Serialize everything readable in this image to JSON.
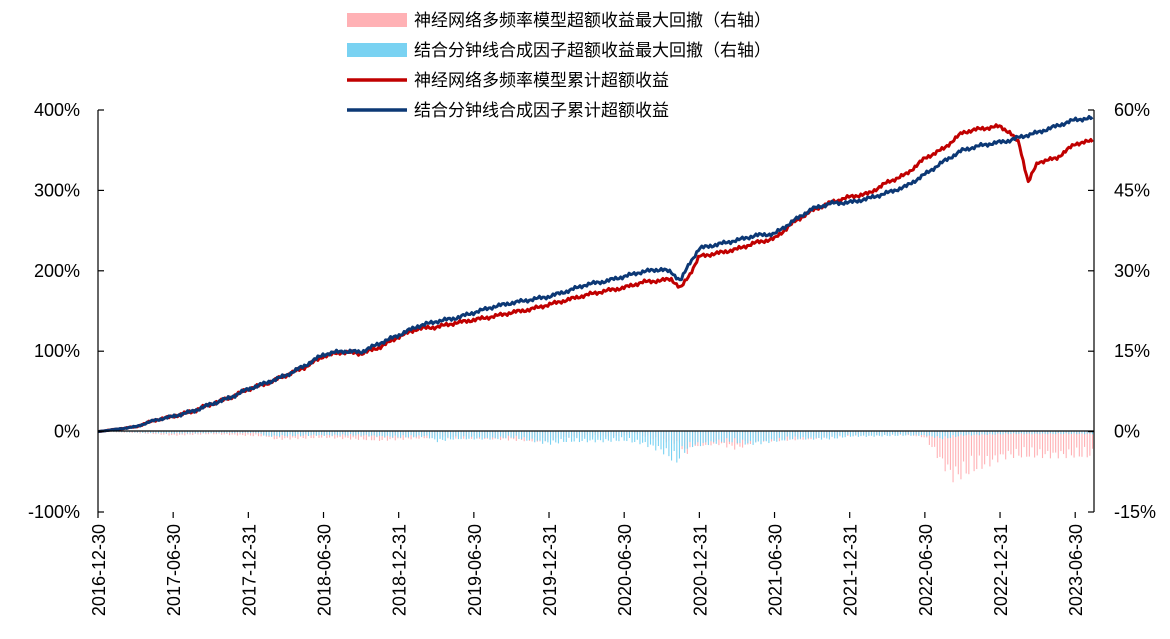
{
  "chart_data": {
    "type": "line",
    "x_tick_labels": [
      "2016-12-30",
      "2017-06-30",
      "2017-12-31",
      "2018-06-30",
      "2018-12-31",
      "2019-06-30",
      "2019-12-31",
      "2020-06-30",
      "2020-12-31",
      "2021-06-30",
      "2021-12-31",
      "2022-06-30",
      "2022-12-31",
      "2023-06-30"
    ],
    "y_left_ticks": [
      "-100%",
      "0%",
      "100%",
      "200%",
      "300%",
      "400%"
    ],
    "y_right_ticks": [
      "-15%",
      "0%",
      "15%",
      "30%",
      "45%",
      "60%"
    ],
    "ylim_left": [
      -100,
      400
    ],
    "ylim_right": [
      -15,
      60
    ],
    "legend_position": "top-center",
    "series": [
      {
        "name": "神经网络多频率模型超额收益最大回撤（右轴）",
        "kind": "bar",
        "axis": "right",
        "color": "#FFB1B5",
        "points": [
          [
            0,
            0
          ],
          [
            4,
            -0.3
          ],
          [
            6,
            -0.5
          ],
          [
            8,
            -0.8
          ],
          [
            12,
            -0.5
          ],
          [
            18,
            -1
          ],
          [
            19,
            -1.6
          ],
          [
            24,
            -1.2
          ],
          [
            30,
            -1.8
          ],
          [
            36,
            -1.2
          ],
          [
            42,
            -1.5
          ],
          [
            47,
            -2
          ],
          [
            50,
            -1.2
          ],
          [
            56,
            -1
          ],
          [
            57,
            -0.3
          ],
          [
            59,
            -1.5
          ],
          [
            62,
            -2.5
          ],
          [
            62.6,
            -5.5
          ],
          [
            63,
            -3
          ],
          [
            66,
            -2.5
          ],
          [
            68,
            -3.5
          ],
          [
            70,
            -2
          ],
          [
            76,
            -1.5
          ],
          [
            78,
            -1
          ],
          [
            80,
            -0.8
          ],
          [
            82,
            -0.8
          ],
          [
            84,
            -0.6
          ],
          [
            86,
            -0.6
          ],
          [
            88,
            -1.2
          ],
          [
            89,
            -4
          ],
          [
            90,
            -7
          ],
          [
            91,
            -9.5
          ],
          [
            92,
            -9
          ],
          [
            93,
            -8
          ],
          [
            94,
            -7.2
          ],
          [
            95,
            -6.5
          ],
          [
            96,
            -5.5
          ],
          [
            97,
            -5
          ]
        ]
      },
      {
        "name": "结合分钟线合成因子超额收益最大回撤（右轴）",
        "kind": "bar",
        "axis": "right",
        "color": "#79D2F2",
        "points": [
          [
            0,
            0
          ],
          [
            4,
            -0.2
          ],
          [
            8,
            -0.4
          ],
          [
            12,
            -0.3
          ],
          [
            17,
            -0.3
          ],
          [
            18,
            -1
          ],
          [
            23,
            -0.8
          ],
          [
            28,
            -0.8
          ],
          [
            32,
            -1.2
          ],
          [
            35,
            -1
          ],
          [
            36,
            -2
          ],
          [
            38,
            -1.5
          ],
          [
            42,
            -1.5
          ],
          [
            44,
            -1.2
          ],
          [
            48,
            -2.5
          ],
          [
            50,
            -2
          ],
          [
            54,
            -2
          ],
          [
            56,
            -1.8
          ],
          [
            58,
            -2.5
          ],
          [
            60,
            -4
          ],
          [
            61,
            -5.5
          ],
          [
            61.5,
            -6.5
          ],
          [
            62,
            -5
          ],
          [
            63,
            -3
          ],
          [
            65,
            -2.5
          ],
          [
            67,
            -2
          ],
          [
            69,
            -2.5
          ],
          [
            70,
            -2.5
          ],
          [
            72,
            -2
          ],
          [
            74,
            -1.5
          ],
          [
            78,
            -1.5
          ],
          [
            80,
            -1
          ],
          [
            82,
            -1
          ],
          [
            86,
            -0.8
          ],
          [
            88,
            -0.8
          ],
          [
            90,
            -1.5
          ],
          [
            92,
            -0.8
          ],
          [
            97,
            -0.5
          ]
        ]
      },
      {
        "name": "神经网络多频率模型累计超额收益",
        "kind": "line",
        "axis": "left",
        "color": "#C00000",
        "points": [
          [
            0,
            0
          ],
          [
            2,
            3
          ],
          [
            4,
            6
          ],
          [
            6,
            14
          ],
          [
            8,
            19
          ],
          [
            10,
            25
          ],
          [
            12,
            34
          ],
          [
            14,
            42
          ],
          [
            16,
            53
          ],
          [
            18,
            60
          ],
          [
            20,
            70
          ],
          [
            22,
            80
          ],
          [
            24,
            94
          ],
          [
            26,
            99
          ],
          [
            28,
            97
          ],
          [
            30,
            105
          ],
          [
            32,
            118
          ],
          [
            34,
            128
          ],
          [
            36,
            130
          ],
          [
            38,
            135
          ],
          [
            40,
            139
          ],
          [
            42,
            143
          ],
          [
            44,
            148
          ],
          [
            46,
            152
          ],
          [
            48,
            158
          ],
          [
            50,
            164
          ],
          [
            52,
            170
          ],
          [
            54,
            175
          ],
          [
            56,
            179
          ],
          [
            58,
            186
          ],
          [
            60,
            188
          ],
          [
            61,
            190
          ],
          [
            62,
            178
          ],
          [
            63,
            196
          ],
          [
            64,
            218
          ],
          [
            66,
            222
          ],
          [
            68,
            227
          ],
          [
            70,
            235
          ],
          [
            72,
            240
          ],
          [
            74,
            260
          ],
          [
            76,
            275
          ],
          [
            78,
            285
          ],
          [
            80,
            292
          ],
          [
            82,
            296
          ],
          [
            84,
            310
          ],
          [
            86,
            320
          ],
          [
            88,
            340
          ],
          [
            90,
            352
          ],
          [
            92,
            372
          ],
          [
            94,
            377
          ],
          [
            95,
            378
          ],
          [
            96,
            380
          ],
          [
            97,
            372
          ],
          [
            98,
            360
          ],
          [
            99,
            310
          ],
          [
            100,
            335
          ],
          [
            102,
            340
          ],
          [
            104,
            358
          ],
          [
            106,
            362
          ]
        ]
      },
      {
        "name": "结合分钟线合成因子累计超额收益",
        "kind": "line",
        "axis": "left",
        "color": "#0C3875",
        "points": [
          [
            0,
            0
          ],
          [
            2,
            3
          ],
          [
            4,
            6
          ],
          [
            6,
            14
          ],
          [
            8,
            19
          ],
          [
            10,
            25
          ],
          [
            12,
            34
          ],
          [
            14,
            42
          ],
          [
            16,
            53
          ],
          [
            18,
            61
          ],
          [
            20,
            70
          ],
          [
            22,
            82
          ],
          [
            24,
            96
          ],
          [
            26,
            100
          ],
          [
            28,
            99
          ],
          [
            30,
            110
          ],
          [
            32,
            120
          ],
          [
            34,
            131
          ],
          [
            36,
            137
          ],
          [
            38,
            141
          ],
          [
            40,
            148
          ],
          [
            42,
            155
          ],
          [
            44,
            160
          ],
          [
            46,
            164
          ],
          [
            48,
            168
          ],
          [
            50,
            175
          ],
          [
            52,
            183
          ],
          [
            54,
            187
          ],
          [
            56,
            193
          ],
          [
            58,
            199
          ],
          [
            60,
            202
          ],
          [
            61,
            198
          ],
          [
            62,
            188
          ],
          [
            63,
            210
          ],
          [
            64,
            228
          ],
          [
            66,
            233
          ],
          [
            68,
            238
          ],
          [
            70,
            244
          ],
          [
            72,
            246
          ],
          [
            74,
            262
          ],
          [
            76,
            277
          ],
          [
            78,
            284
          ],
          [
            80,
            285
          ],
          [
            82,
            290
          ],
          [
            84,
            297
          ],
          [
            86,
            305
          ],
          [
            88,
            320
          ],
          [
            90,
            336
          ],
          [
            92,
            350
          ],
          [
            94,
            356
          ],
          [
            96,
            360
          ],
          [
            97,
            362
          ],
          [
            98,
            366
          ],
          [
            100,
            372
          ],
          [
            102,
            380
          ],
          [
            104,
            388
          ],
          [
            106,
            390
          ]
        ]
      }
    ]
  }
}
